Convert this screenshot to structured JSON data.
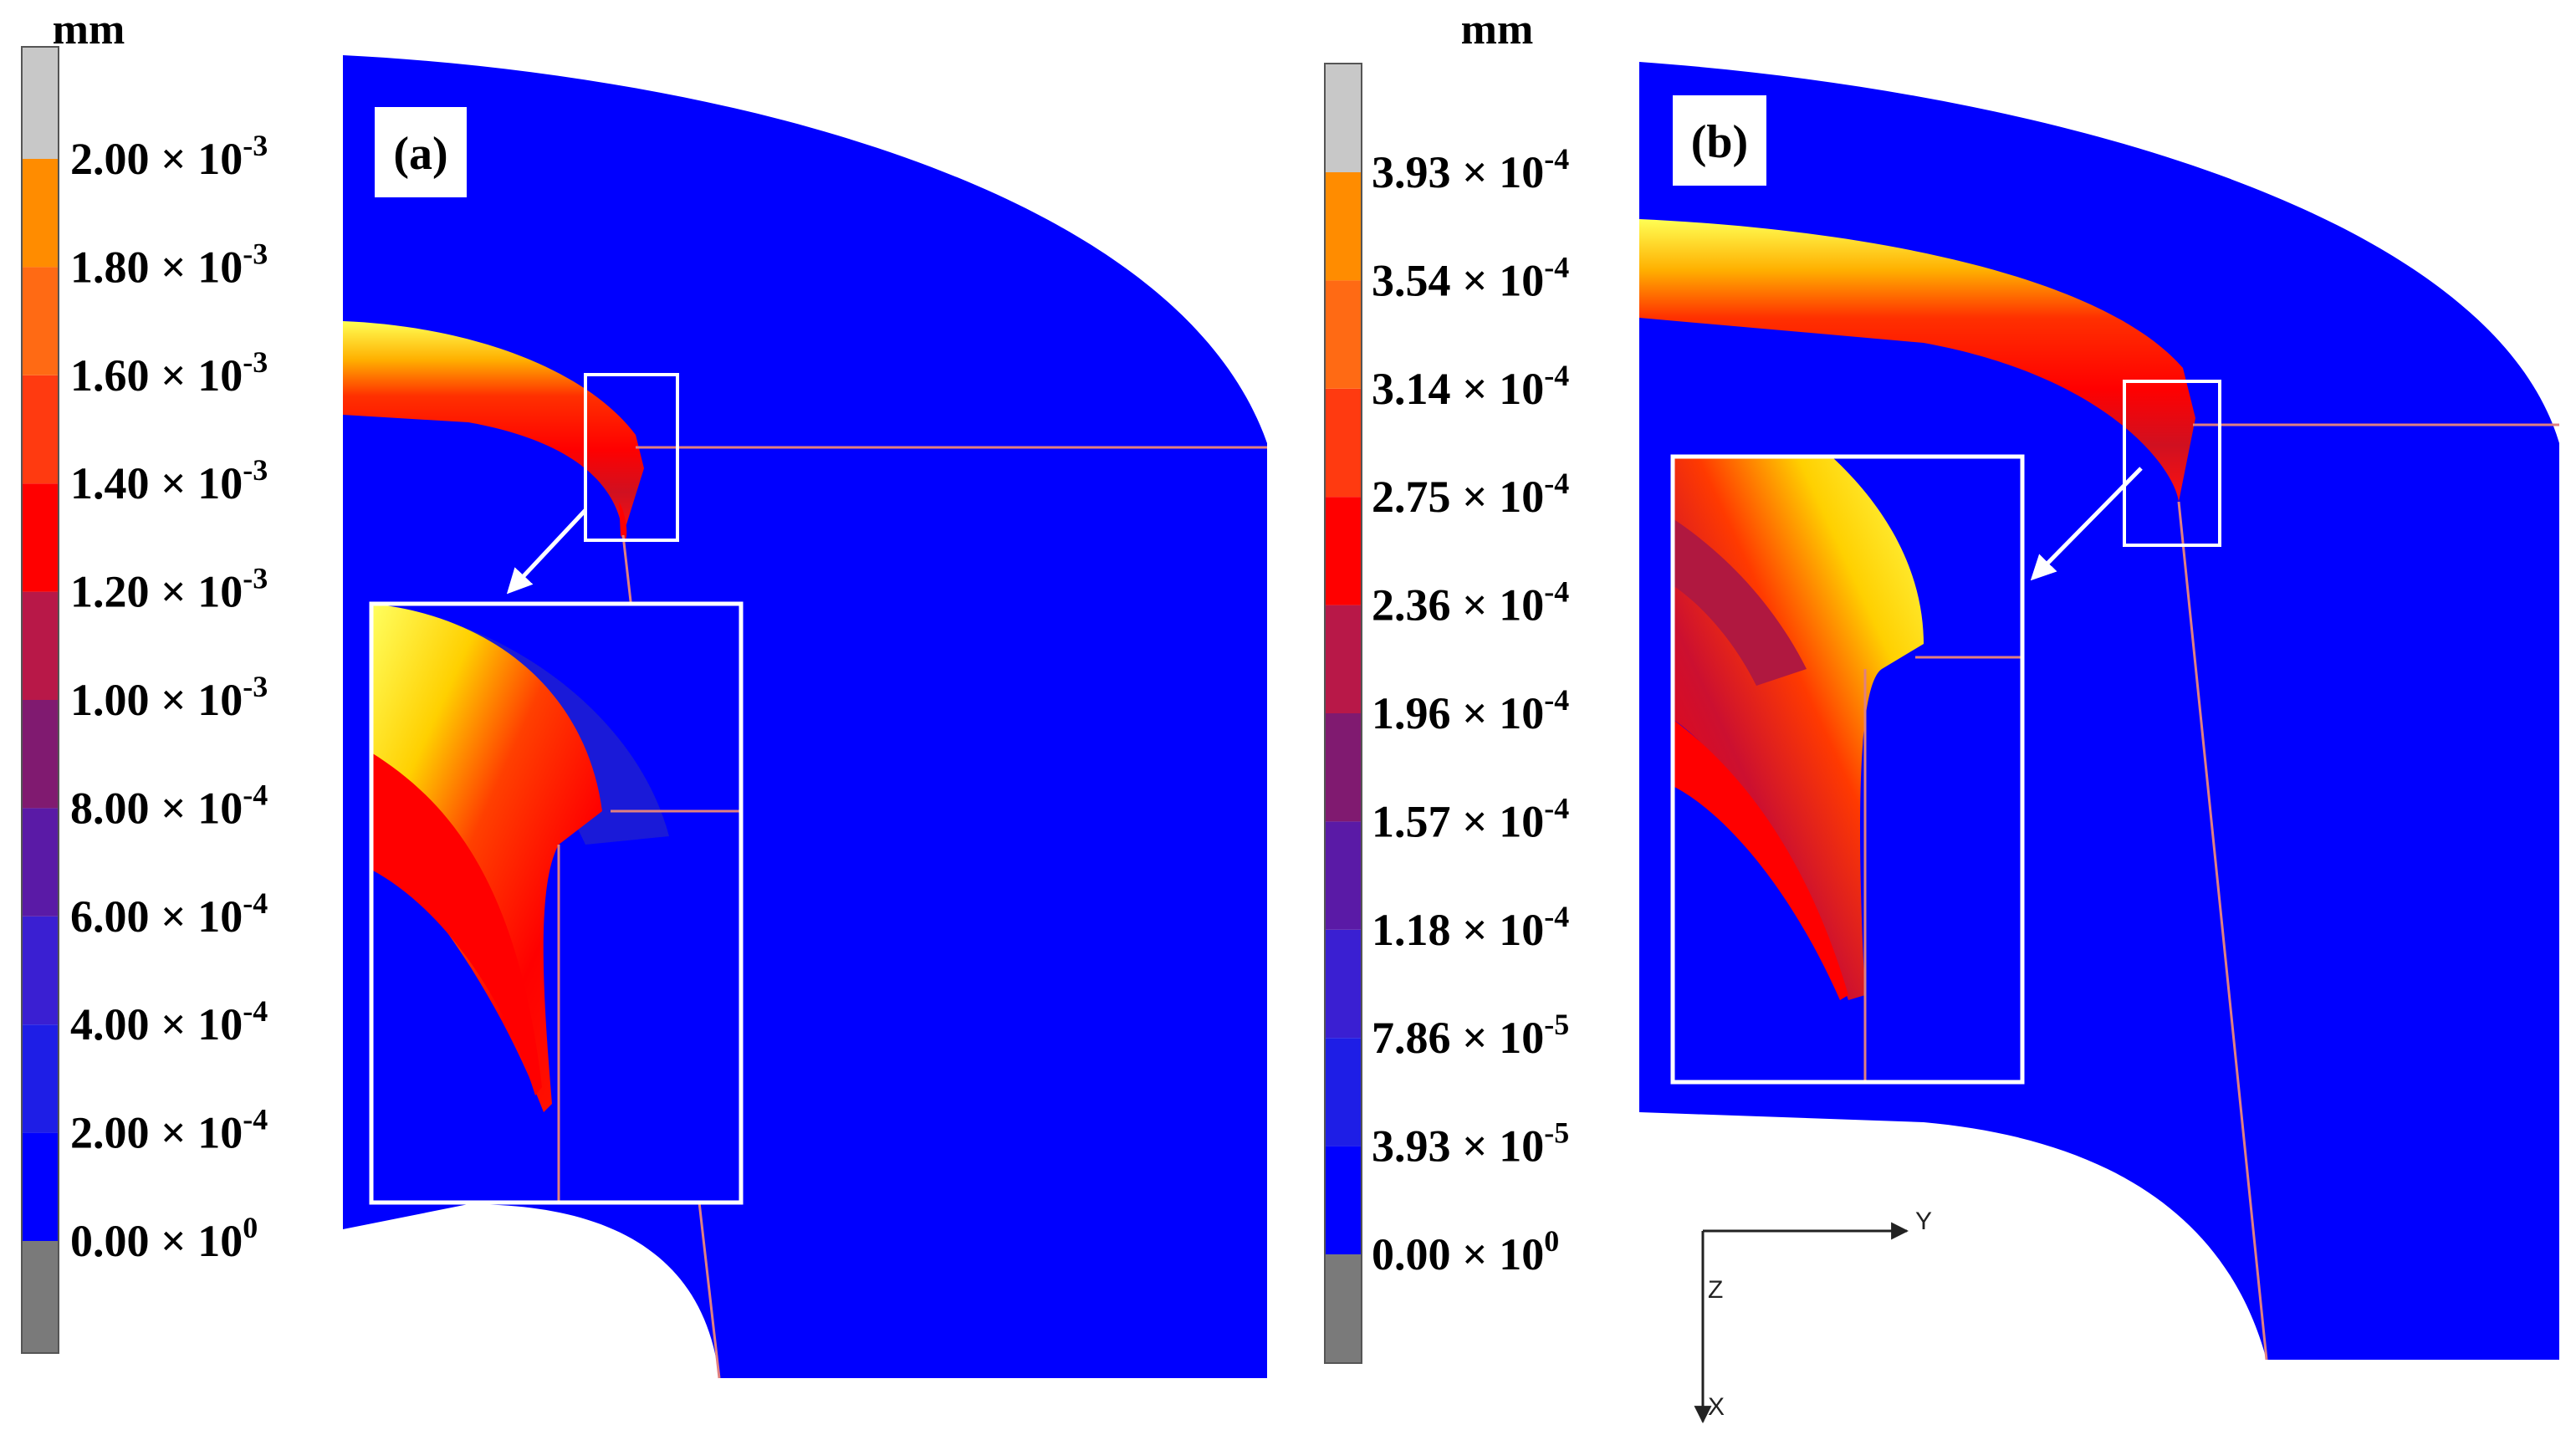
{
  "figure": {
    "panels": [
      {
        "label": "(a)",
        "unit": "mm",
        "legend": {
          "colors": [
            "#0000ff",
            "#1e1ee6",
            "#3a1fd2",
            "#5a1aa6",
            "#801a70",
            "#b81848",
            "#ff0000",
            "#ff3a10",
            "#ff6a14",
            "#ff8c00",
            "#ffb000",
            "#ffe000",
            "#c8c8c8"
          ],
          "below_color": "#7a7a7a",
          "above_color": "#c8c8c8",
          "ticks": [
            {
              "mantissa": "0.00",
              "times": "×",
              "base": "10",
              "exp": "0"
            },
            {
              "mantissa": "2.00",
              "times": "×",
              "base": "10",
              "exp": "-4"
            },
            {
              "mantissa": "4.00",
              "times": "×",
              "base": "10",
              "exp": "-4"
            },
            {
              "mantissa": "6.00",
              "times": "×",
              "base": "10",
              "exp": "-4"
            },
            {
              "mantissa": "8.00",
              "times": "×",
              "base": "10",
              "exp": "-4"
            },
            {
              "mantissa": "1.00",
              "times": "×",
              "base": "10",
              "exp": "-3"
            },
            {
              "mantissa": "1.20",
              "times": "×",
              "base": "10",
              "exp": "-3"
            },
            {
              "mantissa": "1.40",
              "times": "×",
              "base": "10",
              "exp": "-3"
            },
            {
              "mantissa": "1.60",
              "times": "×",
              "base": "10",
              "exp": "-3"
            },
            {
              "mantissa": "1.80",
              "times": "×",
              "base": "10",
              "exp": "-3"
            },
            {
              "mantissa": "2.00",
              "times": "×",
              "base": "10",
              "exp": "-3"
            }
          ]
        }
      },
      {
        "label": "(b)",
        "unit": "mm",
        "legend": {
          "colors": [
            "#0000ff",
            "#1e1ee6",
            "#3a1fd2",
            "#5a1aa6",
            "#801a70",
            "#b81848",
            "#ff0000",
            "#ff3a10",
            "#ff6a14",
            "#ff8c00",
            "#ffb000",
            "#ffe000",
            "#c8c8c8"
          ],
          "below_color": "#7a7a7a",
          "above_color": "#c8c8c8",
          "ticks": [
            {
              "mantissa": "0.00",
              "times": "×",
              "base": "10",
              "exp": "0"
            },
            {
              "mantissa": "3.93",
              "times": "×",
              "base": "10",
              "exp": "-5"
            },
            {
              "mantissa": "7.86",
              "times": "×",
              "base": "10",
              "exp": "-5"
            },
            {
              "mantissa": "1.18",
              "times": "×",
              "base": "10",
              "exp": "-4"
            },
            {
              "mantissa": "1.57",
              "times": "×",
              "base": "10",
              "exp": "-4"
            },
            {
              "mantissa": "1.96",
              "times": "×",
              "base": "10",
              "exp": "-4"
            },
            {
              "mantissa": "2.36",
              "times": "×",
              "base": "10",
              "exp": "-4"
            },
            {
              "mantissa": "2.75",
              "times": "×",
              "base": "10",
              "exp": "-4"
            },
            {
              "mantissa": "3.14",
              "times": "×",
              "base": "10",
              "exp": "-4"
            },
            {
              "mantissa": "3.54",
              "times": "×",
              "base": "10",
              "exp": "-4"
            },
            {
              "mantissa": "3.93",
              "times": "×",
              "base": "10",
              "exp": "-4"
            }
          ]
        }
      }
    ],
    "axes_triad": {
      "y_label": "Y",
      "z_label": "Z",
      "x_label": "X"
    },
    "colors": {
      "background": "#0000ff",
      "band_inner": "#ff0000",
      "band_mid": "#ff7a00",
      "band_peak": "#ffff33",
      "outline": "#e08080"
    }
  }
}
